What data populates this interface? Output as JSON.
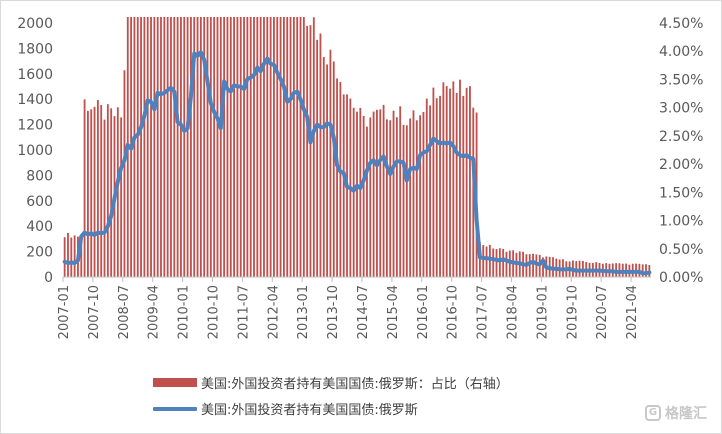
{
  "chart_data": {
    "type": "bar+line",
    "title": "",
    "left_axis": {
      "ylim": [
        0,
        2000
      ],
      "ticks": [
        "0",
        "200",
        "400",
        "600",
        "800",
        "1000",
        "1200",
        "1400",
        "1600",
        "1800",
        "2000"
      ]
    },
    "right_axis": {
      "ylim": [
        0,
        4.5
      ],
      "ticks": [
        "0.00%",
        "0.50%",
        "1.00%",
        "1.50%",
        "2.00%",
        "2.50%",
        "3.00%",
        "3.50%",
        "4.00%",
        "4.50%"
      ]
    },
    "x_ticks": [
      "2007-01",
      "2007-10",
      "2008-07",
      "2009-04",
      "2010-01",
      "2010-10",
      "2011-07",
      "2012-04",
      "2013-01",
      "2013-10",
      "2014-07",
      "2015-04",
      "2016-01",
      "2016-10",
      "2017-07",
      "2018-04",
      "2019-01",
      "2019-10",
      "2020-07",
      "2021-04"
    ],
    "start_month": "2007-01",
    "bar_series": {
      "name": "美国:外国投资者持有美国国债:俄罗斯：占比（右轴）",
      "color": "#c0504d",
      "axis": "right",
      "knots": [
        [
          0,
          0.75
        ],
        [
          5,
          0.72
        ],
        [
          6,
          3.1
        ],
        [
          12,
          2.9
        ],
        [
          17,
          2.85
        ],
        [
          18,
          3.6
        ],
        [
          19,
          4.95
        ],
        [
          20,
          5.1
        ],
        [
          24,
          6.1
        ],
        [
          27,
          7.0
        ],
        [
          28,
          8.25
        ],
        [
          30,
          8.35
        ],
        [
          32,
          8.25
        ],
        [
          36,
          8.2
        ],
        [
          39,
          7.7
        ],
        [
          40,
          4.9
        ],
        [
          41,
          5.7
        ],
        [
          42,
          8.4
        ],
        [
          44,
          7.8
        ],
        [
          45,
          6.4
        ],
        [
          46,
          6.2
        ],
        [
          48,
          6.1
        ],
        [
          52,
          5.9
        ],
        [
          55,
          5.7
        ],
        [
          58,
          5.9
        ],
        [
          61,
          5.8
        ],
        [
          64,
          5.6
        ],
        [
          66,
          5.2
        ],
        [
          69,
          5.0
        ],
        [
          72,
          4.8
        ],
        [
          75,
          4.55
        ],
        [
          78,
          4.05
        ],
        [
          81,
          3.85
        ],
        [
          84,
          3.4
        ],
        [
          87,
          3.05
        ],
        [
          90,
          2.75
        ],
        [
          93,
          2.85
        ],
        [
          96,
          2.9
        ],
        [
          99,
          2.95
        ],
        [
          103,
          2.8
        ],
        [
          108,
          2.85
        ],
        [
          111,
          3.3
        ],
        [
          114,
          3.45
        ],
        [
          117,
          3.3
        ],
        [
          120,
          3.3
        ],
        [
          124,
          3.1
        ],
        [
          125,
          0.6
        ],
        [
          130,
          0.5
        ],
        [
          138,
          0.43
        ],
        [
          150,
          0.3
        ],
        [
          160,
          0.25
        ],
        [
          176,
          0.22
        ]
      ]
    },
    "line_series": {
      "name": "美国:外国投资者持有美国国债:俄罗斯",
      "color": "#4f81bd",
      "axis": "left",
      "points": [
        [
          0,
          120
        ],
        [
          1,
          110
        ],
        [
          2,
          115
        ],
        [
          3,
          110
        ],
        [
          4,
          130
        ],
        [
          5,
          320
        ],
        [
          6,
          350
        ],
        [
          7,
          335
        ],
        [
          8,
          345
        ],
        [
          9,
          330
        ],
        [
          10,
          350
        ],
        [
          11,
          345
        ],
        [
          12,
          350
        ],
        [
          13,
          400
        ],
        [
          14,
          480
        ],
        [
          15,
          620
        ],
        [
          16,
          750
        ],
        [
          17,
          860
        ],
        [
          18,
          920
        ],
        [
          19,
          1040
        ],
        [
          20,
          1010
        ],
        [
          21,
          1100
        ],
        [
          22,
          1120
        ],
        [
          23,
          1180
        ],
        [
          24,
          1270
        ],
        [
          25,
          1390
        ],
        [
          26,
          1380
        ],
        [
          27,
          1320
        ],
        [
          28,
          1450
        ],
        [
          29,
          1440
        ],
        [
          30,
          1450
        ],
        [
          31,
          1470
        ],
        [
          32,
          1490
        ],
        [
          33,
          1460
        ],
        [
          34,
          1220
        ],
        [
          35,
          1200
        ],
        [
          36,
          1150
        ],
        [
          37,
          1170
        ],
        [
          38,
          1420
        ],
        [
          39,
          1760
        ],
        [
          40,
          1740
        ],
        [
          41,
          1770
        ],
        [
          42,
          1710
        ],
        [
          43,
          1540
        ],
        [
          44,
          1370
        ],
        [
          45,
          1300
        ],
        [
          46,
          1250
        ],
        [
          47,
          1170
        ],
        [
          48,
          1540
        ],
        [
          49,
          1480
        ],
        [
          50,
          1460
        ],
        [
          51,
          1510
        ],
        [
          52,
          1500
        ],
        [
          53,
          1500
        ],
        [
          54,
          1480
        ],
        [
          55,
          1560
        ],
        [
          56,
          1570
        ],
        [
          57,
          1590
        ],
        [
          58,
          1650
        ],
        [
          59,
          1620
        ],
        [
          60,
          1680
        ],
        [
          61,
          1720
        ],
        [
          62,
          1680
        ],
        [
          63,
          1670
        ],
        [
          64,
          1610
        ],
        [
          65,
          1560
        ],
        [
          66,
          1500
        ],
        [
          67,
          1380
        ],
        [
          68,
          1400
        ],
        [
          69,
          1450
        ],
        [
          70,
          1460
        ],
        [
          71,
          1400
        ],
        [
          72,
          1320
        ],
        [
          73,
          1260
        ],
        [
          74,
          1060
        ],
        [
          75,
          1150
        ],
        [
          76,
          1200
        ],
        [
          77,
          1180
        ],
        [
          78,
          1180
        ],
        [
          79,
          1210
        ],
        [
          80,
          1200
        ],
        [
          81,
          1100
        ],
        [
          82,
          880
        ],
        [
          83,
          830
        ],
        [
          84,
          820
        ],
        [
          85,
          710
        ],
        [
          86,
          700
        ],
        [
          87,
          680
        ],
        [
          88,
          720
        ],
        [
          89,
          700
        ],
        [
          90,
          760
        ],
        [
          91,
          840
        ],
        [
          92,
          900
        ],
        [
          93,
          920
        ],
        [
          94,
          880
        ],
        [
          95,
          920
        ],
        [
          96,
          950
        ],
        [
          97,
          870
        ],
        [
          98,
          810
        ],
        [
          99,
          870
        ],
        [
          100,
          910
        ],
        [
          101,
          910
        ],
        [
          102,
          900
        ],
        [
          103,
          760
        ],
        [
          104,
          850
        ],
        [
          105,
          860
        ],
        [
          106,
          850
        ],
        [
          107,
          960
        ],
        [
          108,
          980
        ],
        [
          109,
          990
        ],
        [
          110,
          1040
        ],
        [
          111,
          1090
        ],
        [
          112,
          1070
        ],
        [
          113,
          1050
        ],
        [
          114,
          1060
        ],
        [
          115,
          1050
        ],
        [
          116,
          1060
        ],
        [
          117,
          1030
        ],
        [
          118,
          980
        ],
        [
          119,
          960
        ],
        [
          120,
          950
        ],
        [
          121,
          960
        ],
        [
          122,
          940
        ],
        [
          123,
          930
        ],
        [
          124,
          450
        ],
        [
          125,
          155
        ],
        [
          126,
          150
        ],
        [
          127,
          148
        ],
        [
          128,
          145
        ],
        [
          129,
          140
        ],
        [
          130,
          135
        ],
        [
          131,
          130
        ],
        [
          132,
          140
        ],
        [
          133,
          130
        ],
        [
          134,
          120
        ],
        [
          135,
          115
        ],
        [
          136,
          110
        ],
        [
          137,
          108
        ],
        [
          138,
          100
        ],
        [
          139,
          95
        ],
        [
          140,
          110
        ],
        [
          141,
          120
        ],
        [
          142,
          105
        ],
        [
          143,
          100
        ],
        [
          144,
          130
        ],
        [
          145,
          75
        ],
        [
          146,
          70
        ],
        [
          147,
          65
        ],
        [
          148,
          65
        ],
        [
          149,
          60
        ],
        [
          150,
          60
        ],
        [
          151,
          60
        ],
        [
          152,
          65
        ],
        [
          153,
          55
        ],
        [
          154,
          50
        ],
        [
          155,
          50
        ],
        [
          156,
          50
        ],
        [
          157,
          50
        ],
        [
          158,
          50
        ],
        [
          159,
          50
        ],
        [
          160,
          50
        ],
        [
          161,
          50
        ],
        [
          162,
          48
        ],
        [
          163,
          45
        ],
        [
          164,
          45
        ],
        [
          165,
          45
        ],
        [
          166,
          40
        ],
        [
          167,
          40
        ],
        [
          168,
          40
        ],
        [
          169,
          40
        ],
        [
          170,
          40
        ],
        [
          171,
          40
        ],
        [
          172,
          40
        ],
        [
          173,
          40
        ],
        [
          174,
          30
        ],
        [
          175,
          30
        ],
        [
          176,
          35
        ]
      ]
    },
    "legend_placement": "bottom",
    "grid": false
  },
  "watermark": "格隆汇"
}
